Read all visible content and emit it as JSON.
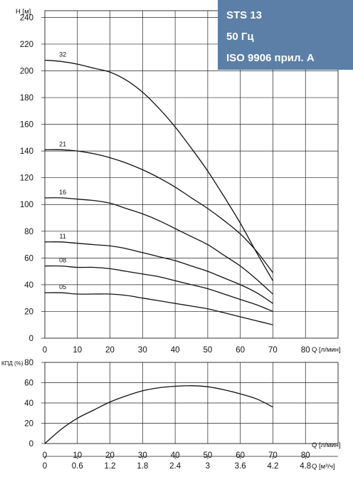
{
  "badge": {
    "lines": [
      "STS 13",
      "50 Гц",
      "ISO 9906 прил. A"
    ],
    "color": "#5b7fa6"
  },
  "chart_data": [
    {
      "type": "line",
      "title": "",
      "ylabel": "H [м]",
      "xlabel": "Q [л/мин]",
      "xlim": [
        0,
        90
      ],
      "ylim": [
        0,
        245
      ],
      "x_ticks": [
        0,
        10,
        20,
        30,
        40,
        50,
        60,
        70,
        80
      ],
      "y_ticks": [
        0,
        20,
        40,
        60,
        80,
        100,
        120,
        140,
        160,
        180,
        200,
        220,
        240
      ],
      "grid": true,
      "series": [
        {
          "name": "32",
          "x": [
            0,
            5,
            10,
            15,
            20,
            25,
            30,
            35,
            40,
            45,
            50,
            55,
            60,
            65,
            70
          ],
          "y": [
            208,
            207,
            205,
            202,
            199,
            193,
            184,
            172,
            158,
            142,
            125,
            106,
            86,
            64,
            43
          ]
        },
        {
          "name": "21",
          "x": [
            0,
            5,
            10,
            15,
            20,
            25,
            30,
            35,
            40,
            45,
            50,
            55,
            60,
            65,
            70
          ],
          "y": [
            141,
            141,
            140,
            138,
            135,
            131,
            126,
            120,
            113,
            105,
            97,
            88,
            78,
            65,
            49
          ]
        },
        {
          "name": "16",
          "x": [
            0,
            5,
            10,
            15,
            20,
            25,
            30,
            35,
            40,
            45,
            50,
            55,
            60,
            65,
            70
          ],
          "y": [
            105,
            105,
            104,
            103,
            101,
            97,
            93,
            88,
            82,
            76,
            70,
            62,
            54,
            44,
            33
          ]
        },
        {
          "name": "11",
          "x": [
            0,
            5,
            10,
            15,
            20,
            25,
            30,
            35,
            40,
            45,
            50,
            55,
            60,
            65,
            70
          ],
          "y": [
            72,
            72,
            71,
            70,
            69,
            67,
            64,
            61,
            58,
            54,
            50,
            45,
            40,
            34,
            26
          ]
        },
        {
          "name": "08",
          "x": [
            0,
            5,
            10,
            15,
            20,
            25,
            30,
            35,
            40,
            45,
            50,
            55,
            60,
            65,
            70
          ],
          "y": [
            54,
            54,
            53,
            53,
            52,
            50,
            48,
            46,
            43,
            40,
            37,
            33,
            29,
            25,
            20
          ]
        },
        {
          "name": "05",
          "x": [
            0,
            5,
            10,
            15,
            20,
            25,
            30,
            35,
            40,
            45,
            50,
            55,
            60,
            65,
            70
          ],
          "y": [
            34,
            34,
            33,
            33,
            33,
            32,
            30,
            28,
            26,
            24,
            22,
            19,
            16,
            13,
            10
          ]
        }
      ]
    },
    {
      "type": "line",
      "title": "",
      "ylabel": "КПД (%)",
      "xlabel": "Q [л/мин]",
      "xlim": [
        0,
        90
      ],
      "ylim": [
        0,
        80
      ],
      "x_ticks": [
        0,
        10,
        20,
        30,
        40,
        50,
        60,
        70,
        80
      ],
      "y_ticks": [
        0,
        20,
        40,
        60,
        80
      ],
      "grid": true,
      "series": [
        {
          "name": "",
          "x": [
            0,
            5,
            10,
            15,
            20,
            25,
            30,
            35,
            40,
            45,
            50,
            55,
            60,
            65,
            70
          ],
          "y": [
            0,
            14,
            25,
            33,
            41,
            47,
            52,
            55,
            56.5,
            57,
            56,
            53,
            49,
            44,
            36
          ]
        }
      ]
    }
  ],
  "secondary_x_axis": {
    "label": "Q [м³/ч]",
    "ticks": [
      "0",
      "0.6",
      "1.2",
      "1.8",
      "2.4",
      "3",
      "3.6",
      "4.2",
      "4.8"
    ]
  }
}
